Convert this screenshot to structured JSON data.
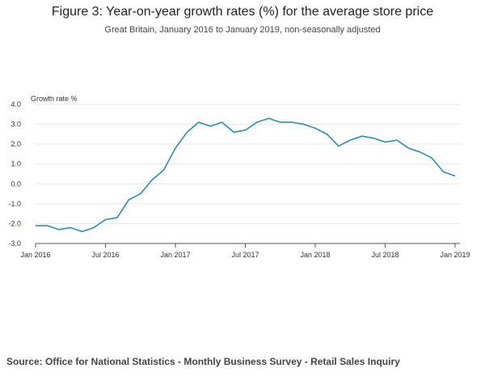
{
  "header": {
    "title": "Figure 3: Year-on-year growth rates (%) for the average store price",
    "subtitle": "Great Britain, January 2016 to January 2019, non-seasonally adjusted"
  },
  "footer": {
    "source": "Source: Office for National Statistics - Monthly Business Survey - Retail Sales Inquiry"
  },
  "chart_data": {
    "type": "line",
    "title": "Figure 3: Year-on-year growth rates (%) for the average store price",
    "subtitle": "Great Britain, January 2016 to January 2019, non-seasonally adjusted",
    "xlabel": "",
    "ylabel": "Growth rate %",
    "ylim": [
      -3.0,
      4.0
    ],
    "y_ticks": [
      "4.0",
      "3.0",
      "2.0",
      "1.0",
      "0.0",
      "-1.0",
      "-2.0",
      "-3.0"
    ],
    "x_ticks": [
      "Jan 2016",
      "Jul 2016",
      "Jan 2017",
      "Jul 2017",
      "Jan 2018",
      "Jul 2018",
      "Jan 2019"
    ],
    "grid": true,
    "series_color": "#2a8fad",
    "x": [
      "Jan 2016",
      "Feb 2016",
      "Mar 2016",
      "Apr 2016",
      "May 2016",
      "Jun 2016",
      "Jul 2016",
      "Aug 2016",
      "Sep 2016",
      "Oct 2016",
      "Nov 2016",
      "Dec 2016",
      "Jan 2017",
      "Feb 2017",
      "Mar 2017",
      "Apr 2017",
      "May 2017",
      "Jun 2017",
      "Jul 2017",
      "Aug 2017",
      "Sep 2017",
      "Oct 2017",
      "Nov 2017",
      "Dec 2017",
      "Jan 2018",
      "Feb 2018",
      "Mar 2018",
      "Apr 2018",
      "May 2018",
      "Jun 2018",
      "Jul 2018",
      "Aug 2018",
      "Sep 2018",
      "Oct 2018",
      "Nov 2018",
      "Dec 2018",
      "Jan 2019"
    ],
    "values": [
      -2.1,
      -2.1,
      -2.3,
      -2.2,
      -2.4,
      -2.2,
      -1.8,
      -1.7,
      -0.8,
      -0.5,
      0.2,
      0.7,
      1.8,
      2.6,
      3.1,
      2.9,
      3.1,
      2.6,
      2.7,
      3.1,
      3.3,
      3.1,
      3.1,
      3.0,
      2.8,
      2.5,
      1.9,
      2.2,
      2.4,
      2.3,
      2.1,
      2.2,
      1.8,
      1.6,
      1.3,
      0.6,
      0.4
    ]
  }
}
